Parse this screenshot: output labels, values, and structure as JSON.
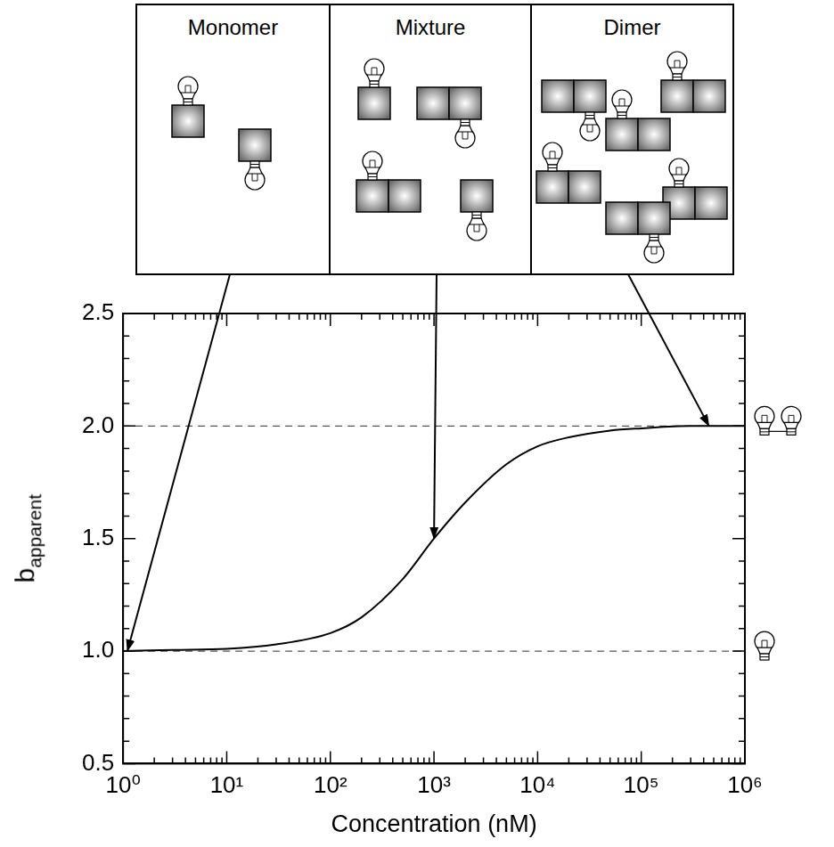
{
  "chart_data": {
    "type": "line",
    "xlabel": "Concentration (nM)",
    "ylabel": {
      "text": "b",
      "subscript": "apparent"
    },
    "log": "x",
    "grid": false,
    "x": [
      1,
      3,
      10,
      30,
      100,
      200,
      500,
      1000,
      2000,
      5000,
      10000,
      20000,
      50000,
      100000,
      300000,
      1000000
    ],
    "values": [
      1.0,
      1.005,
      1.01,
      1.03,
      1.08,
      1.15,
      1.32,
      1.5,
      1.66,
      1.83,
      1.91,
      1.95,
      1.98,
      1.99,
      2.0,
      2.0
    ],
    "color": "#000000",
    "marker": "none",
    "line_style": "solid",
    "xlim": [
      1,
      1000000
    ],
    "xticks": [
      {
        "value": 1,
        "label": "10⁰"
      },
      {
        "value": 10,
        "label": "10¹"
      },
      {
        "value": 100,
        "label": "10²"
      },
      {
        "value": 1000,
        "label": "10³"
      },
      {
        "value": 10000,
        "label": "10⁴"
      },
      {
        "value": 100000,
        "label": "10⁵"
      },
      {
        "value": 1000000,
        "label": "10⁶"
      }
    ],
    "ylim": [
      0.5,
      2.5
    ],
    "yticks": [
      0.5,
      {
        "value": 1.0,
        "label": "1.0"
      },
      1.5,
      {
        "value": 2.0,
        "label": "2.0"
      },
      2.5
    ],
    "reference_lines": [
      {
        "value": 1.0,
        "line_style": "dashed"
      },
      {
        "value": 2.0,
        "line_style": "dashed"
      }
    ]
  },
  "panels": [
    {
      "title": "Monomer",
      "points_to": {
        "x": 1.1,
        "y": 1.0
      }
    },
    {
      "title": "Mixture",
      "points_to": {
        "x": 1000,
        "y": 1.5
      }
    },
    {
      "title": "Dimer",
      "points_to": {
        "x": 450000,
        "y": 2.0
      }
    }
  ]
}
